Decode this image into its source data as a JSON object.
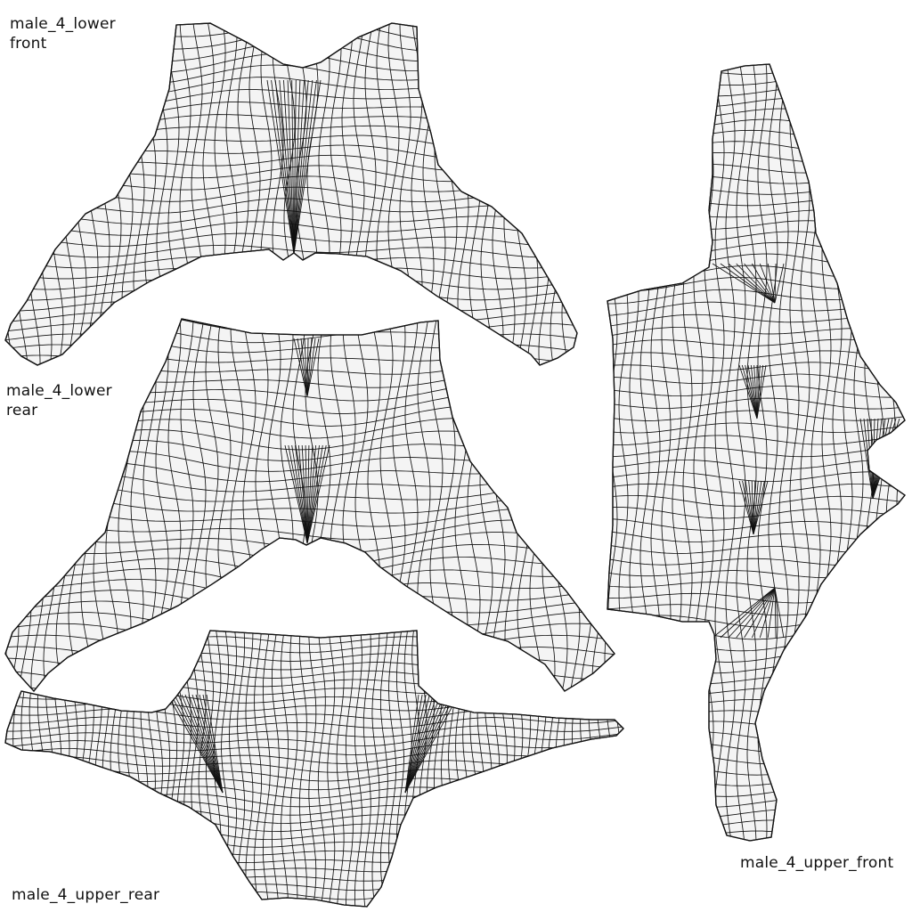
{
  "labels": {
    "lower_front": "male_4_lower\nfront",
    "lower_rear": "male_4_lower\nrear",
    "upper_rear": "male_4_upper_rear",
    "upper_front": "male_4_upper_front"
  },
  "colors": {
    "background": "#ffffff",
    "piece_fill": "#f4f4f4",
    "wire": "#111111"
  }
}
